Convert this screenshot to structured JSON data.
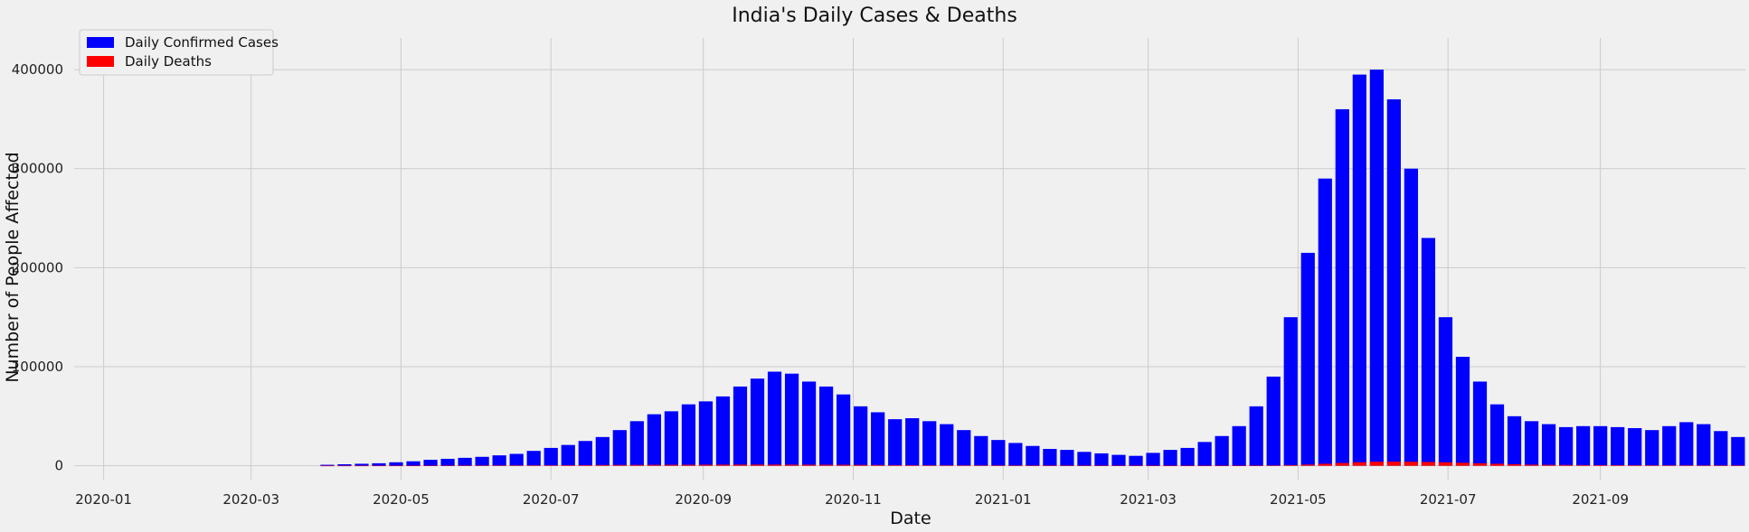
{
  "chart_data": {
    "type": "bar",
    "title": "India's Daily Cases & Deaths",
    "xlabel": "Date",
    "ylabel": "Number of People Affected",
    "x_range": [
      "2019-12-20",
      "2021-10-30"
    ],
    "ylim": [
      -14000,
      432000
    ],
    "x_ticks": [
      "2020-01-01",
      "2020-03-01",
      "2020-05-01",
      "2020-07-01",
      "2020-09-01",
      "2020-11-01",
      "2021-01-01",
      "2021-03-01",
      "2021-05-01",
      "2021-07-01",
      "2021-09-01"
    ],
    "x_tick_labels": [
      "2020-01",
      "2020-03",
      "2020-05",
      "2020-07",
      "2020-09",
      "2020-11",
      "2021-01",
      "2021-03",
      "2021-05",
      "2021-07",
      "2021-09"
    ],
    "y_ticks": [
      0,
      100000,
      200000,
      300000,
      400000
    ],
    "y_tick_labels": [
      "0",
      "100000",
      "200000",
      "300000",
      "400000"
    ],
    "grid": true,
    "legend": {
      "placement": "top-left"
    },
    "sampling": "weekly (one point every 7 days)",
    "series": [
      {
        "name": "Daily Confirmed Cases",
        "color": "#0000ff",
        "start_date": "2020-04-01",
        "values": [
          1000,
          1500,
          2000,
          2500,
          3500,
          4500,
          6000,
          7000,
          8000,
          9000,
          10500,
          12000,
          15000,
          18000,
          21000,
          25000,
          29000,
          36000,
          45000,
          52000,
          55000,
          62000,
          65000,
          70000,
          80000,
          88000,
          95000,
          93000,
          85000,
          80000,
          72000,
          60000,
          54000,
          47000,
          48000,
          45000,
          42000,
          36000,
          30000,
          26000,
          23000,
          20000,
          17000,
          16000,
          14000,
          12500,
          11000,
          10000,
          13000,
          16000,
          18000,
          24000,
          30000,
          40000,
          60000,
          90000,
          150000,
          215000,
          290000,
          360000,
          395000,
          400000,
          370000,
          300000,
          230000,
          150000,
          110000,
          85000,
          62000,
          50000,
          45000,
          42000,
          39000,
          40000,
          40000,
          39000,
          38000,
          36000,
          40000,
          44000,
          42000,
          35000,
          29000
        ]
      },
      {
        "name": "Daily Deaths",
        "color": "#ff0000",
        "start_date": "2020-04-01",
        "values": [
          30,
          40,
          60,
          80,
          100,
          120,
          150,
          200,
          250,
          300,
          350,
          400,
          450,
          500,
          550,
          650,
          750,
          800,
          850,
          900,
          950,
          1000,
          1050,
          1100,
          1150,
          1180,
          1150,
          1100,
          1050,
          1000,
          950,
          850,
          750,
          650,
          550,
          500,
          480,
          450,
          400,
          350,
          300,
          280,
          250,
          230,
          200,
          180,
          160,
          140,
          130,
          120,
          110,
          120,
          130,
          150,
          200,
          350,
          700,
          1200,
          2000,
          2800,
          3500,
          4000,
          4100,
          4000,
          3800,
          3500,
          3000,
          2500,
          2000,
          1500,
          1100,
          900,
          800,
          700,
          650,
          600,
          550,
          500,
          480,
          450,
          400,
          350,
          330
        ]
      }
    ]
  }
}
